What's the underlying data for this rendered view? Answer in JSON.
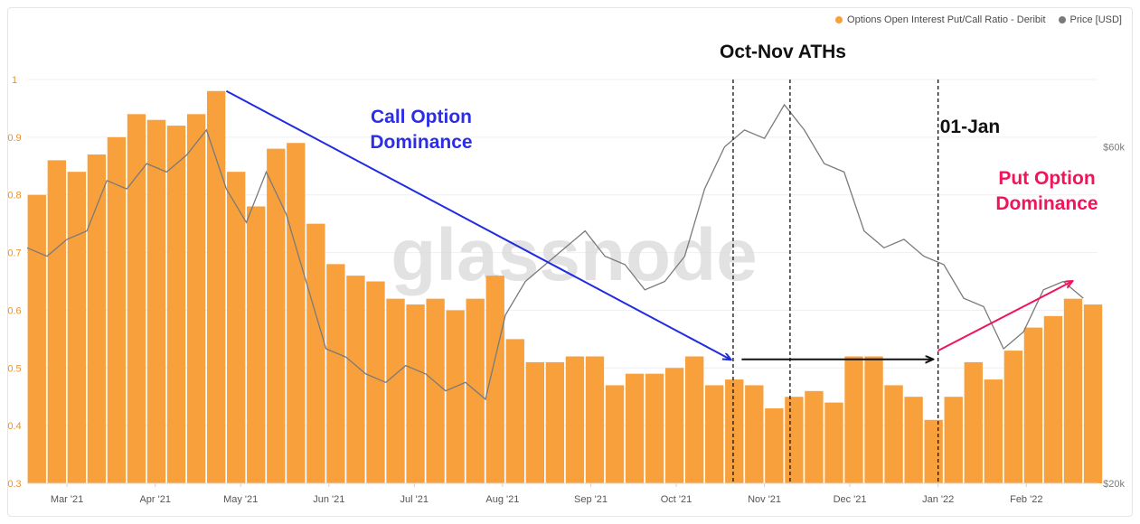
{
  "chart_data": {
    "type": "bar",
    "title": "",
    "xlabel": "",
    "ylabel": "",
    "watermark": "glassnode",
    "legend": [
      {
        "name": "Options Open Interest Put/Call Ratio - Deribit",
        "color": "#f7a03c"
      },
      {
        "name": "Price [USD]",
        "color": "#7a7a7a"
      }
    ],
    "legend_position": "top-right",
    "y_left": {
      "ylim": [
        0.3,
        1.0
      ],
      "ticks": [
        "0.3",
        "0.4",
        "0.5",
        "0.6",
        "0.7",
        "0.8",
        "0.9",
        "1"
      ],
      "tick_color": "#e8922e"
    },
    "y_right": {
      "ticks": [
        {
          "label": "$20k",
          "value": 20000
        },
        {
          "label": "$60k",
          "value": 60000
        }
      ],
      "ylim": [
        20000,
        68000
      ]
    },
    "x_ticks": [
      "Mar '21",
      "Apr '21",
      "May '21",
      "Jun '21",
      "Jul '21",
      "Aug '21",
      "Sep '21",
      "Oct '21",
      "Nov '21",
      "Dec '21",
      "Jan '22",
      "Feb '22"
    ],
    "x_range": [
      "2021-02-15",
      "2022-02-26"
    ],
    "series": [
      {
        "name": "Options Open Interest Put/Call Ratio - Deribit",
        "type": "bar",
        "color": "#f7a03c",
        "points": [
          [
            "2021-02-15",
            0.8
          ],
          [
            "2021-02-22",
            0.86
          ],
          [
            "2021-03-01",
            0.84
          ],
          [
            "2021-03-08",
            0.87
          ],
          [
            "2021-03-15",
            0.9
          ],
          [
            "2021-03-22",
            0.94
          ],
          [
            "2021-03-29",
            0.93
          ],
          [
            "2021-04-05",
            0.92
          ],
          [
            "2021-04-12",
            0.94
          ],
          [
            "2021-04-19",
            0.98
          ],
          [
            "2021-04-26",
            0.84
          ],
          [
            "2021-05-03",
            0.78
          ],
          [
            "2021-05-10",
            0.88
          ],
          [
            "2021-05-17",
            0.89
          ],
          [
            "2021-05-24",
            0.75
          ],
          [
            "2021-05-31",
            0.68
          ],
          [
            "2021-06-07",
            0.66
          ],
          [
            "2021-06-14",
            0.65
          ],
          [
            "2021-06-21",
            0.62
          ],
          [
            "2021-06-28",
            0.61
          ],
          [
            "2021-07-05",
            0.62
          ],
          [
            "2021-07-12",
            0.6
          ],
          [
            "2021-07-19",
            0.62
          ],
          [
            "2021-07-26",
            0.66
          ],
          [
            "2021-08-02",
            0.55
          ],
          [
            "2021-08-09",
            0.51
          ],
          [
            "2021-08-16",
            0.51
          ],
          [
            "2021-08-23",
            0.52
          ],
          [
            "2021-08-30",
            0.52
          ],
          [
            "2021-09-06",
            0.47
          ],
          [
            "2021-09-13",
            0.49
          ],
          [
            "2021-09-20",
            0.49
          ],
          [
            "2021-09-27",
            0.5
          ],
          [
            "2021-10-04",
            0.52
          ],
          [
            "2021-10-11",
            0.47
          ],
          [
            "2021-10-18",
            0.48
          ],
          [
            "2021-10-25",
            0.47
          ],
          [
            "2021-11-01",
            0.43
          ],
          [
            "2021-11-08",
            0.45
          ],
          [
            "2021-11-15",
            0.46
          ],
          [
            "2021-11-22",
            0.44
          ],
          [
            "2021-11-29",
            0.52
          ],
          [
            "2021-12-06",
            0.52
          ],
          [
            "2021-12-13",
            0.47
          ],
          [
            "2021-12-20",
            0.45
          ],
          [
            "2021-12-27",
            0.41
          ],
          [
            "2022-01-03",
            0.45
          ],
          [
            "2022-01-10",
            0.51
          ],
          [
            "2022-01-17",
            0.48
          ],
          [
            "2022-01-24",
            0.53
          ],
          [
            "2022-01-31",
            0.57
          ],
          [
            "2022-02-07",
            0.59
          ],
          [
            "2022-02-14",
            0.62
          ],
          [
            "2022-02-21",
            0.61
          ]
        ]
      },
      {
        "name": "Price [USD]",
        "type": "line",
        "color": "#7a7a7a",
        "points": [
          [
            "2021-02-15",
            48000
          ],
          [
            "2021-02-22",
            47000
          ],
          [
            "2021-03-01",
            49000
          ],
          [
            "2021-03-08",
            50000
          ],
          [
            "2021-03-15",
            56000
          ],
          [
            "2021-03-22",
            55000
          ],
          [
            "2021-03-29",
            58000
          ],
          [
            "2021-04-05",
            57000
          ],
          [
            "2021-04-12",
            59000
          ],
          [
            "2021-04-19",
            62000
          ],
          [
            "2021-04-26",
            55000
          ],
          [
            "2021-05-03",
            51000
          ],
          [
            "2021-05-10",
            57000
          ],
          [
            "2021-05-17",
            52000
          ],
          [
            "2021-05-24",
            44000
          ],
          [
            "2021-05-31",
            36000
          ],
          [
            "2021-06-07",
            35000
          ],
          [
            "2021-06-14",
            33000
          ],
          [
            "2021-06-21",
            32000
          ],
          [
            "2021-06-28",
            34000
          ],
          [
            "2021-07-05",
            33000
          ],
          [
            "2021-07-12",
            31000
          ],
          [
            "2021-07-19",
            32000
          ],
          [
            "2021-07-26",
            30000
          ],
          [
            "2021-08-02",
            40000
          ],
          [
            "2021-08-09",
            44000
          ],
          [
            "2021-08-16",
            46000
          ],
          [
            "2021-08-23",
            48000
          ],
          [
            "2021-08-30",
            50000
          ],
          [
            "2021-09-06",
            47000
          ],
          [
            "2021-09-13",
            46000
          ],
          [
            "2021-09-20",
            43000
          ],
          [
            "2021-09-27",
            44000
          ],
          [
            "2021-10-04",
            47000
          ],
          [
            "2021-10-11",
            55000
          ],
          [
            "2021-10-18",
            60000
          ],
          [
            "2021-10-25",
            62000
          ],
          [
            "2021-11-01",
            61000
          ],
          [
            "2021-11-08",
            65000
          ],
          [
            "2021-11-15",
            62000
          ],
          [
            "2021-11-22",
            58000
          ],
          [
            "2021-11-29",
            57000
          ],
          [
            "2021-12-06",
            50000
          ],
          [
            "2021-12-13",
            48000
          ],
          [
            "2021-12-20",
            49000
          ],
          [
            "2021-12-27",
            47000
          ],
          [
            "2022-01-03",
            46000
          ],
          [
            "2022-01-10",
            42000
          ],
          [
            "2022-01-17",
            41000
          ],
          [
            "2022-01-24",
            36000
          ],
          [
            "2022-01-31",
            38000
          ],
          [
            "2022-02-07",
            43000
          ],
          [
            "2022-02-14",
            44000
          ],
          [
            "2022-02-21",
            42000
          ]
        ]
      }
    ],
    "vlines": [
      "2021-10-21",
      "2021-11-10",
      "2022-01-01"
    ],
    "annotations": [
      {
        "id": "call",
        "text": [
          "Call Option",
          "Dominance"
        ],
        "color": "#2b2ee6"
      },
      {
        "id": "ath",
        "text": [
          "Oct-Nov ATHs"
        ],
        "color": "#111111"
      },
      {
        "id": "jan",
        "text": [
          "01-Jan"
        ],
        "color": "#111111"
      },
      {
        "id": "put",
        "text": [
          "Put Option",
          "Dominance"
        ],
        "color": "#f0145a"
      }
    ],
    "arrows": [
      {
        "id": "call-arrow",
        "from": [
          "2021-04-26",
          0.98
        ],
        "to": [
          "2021-10-20",
          0.515
        ],
        "color": "#1f2ce0"
      },
      {
        "id": "flat-arrow",
        "from": [
          "2021-10-24",
          0.515
        ],
        "to": [
          "2021-12-30",
          0.515
        ],
        "color": "#111111"
      },
      {
        "id": "put-arrow",
        "from": [
          "2022-01-01",
          0.53
        ],
        "to": [
          "2022-02-17",
          0.65
        ],
        "color": "#f0145a"
      }
    ]
  }
}
